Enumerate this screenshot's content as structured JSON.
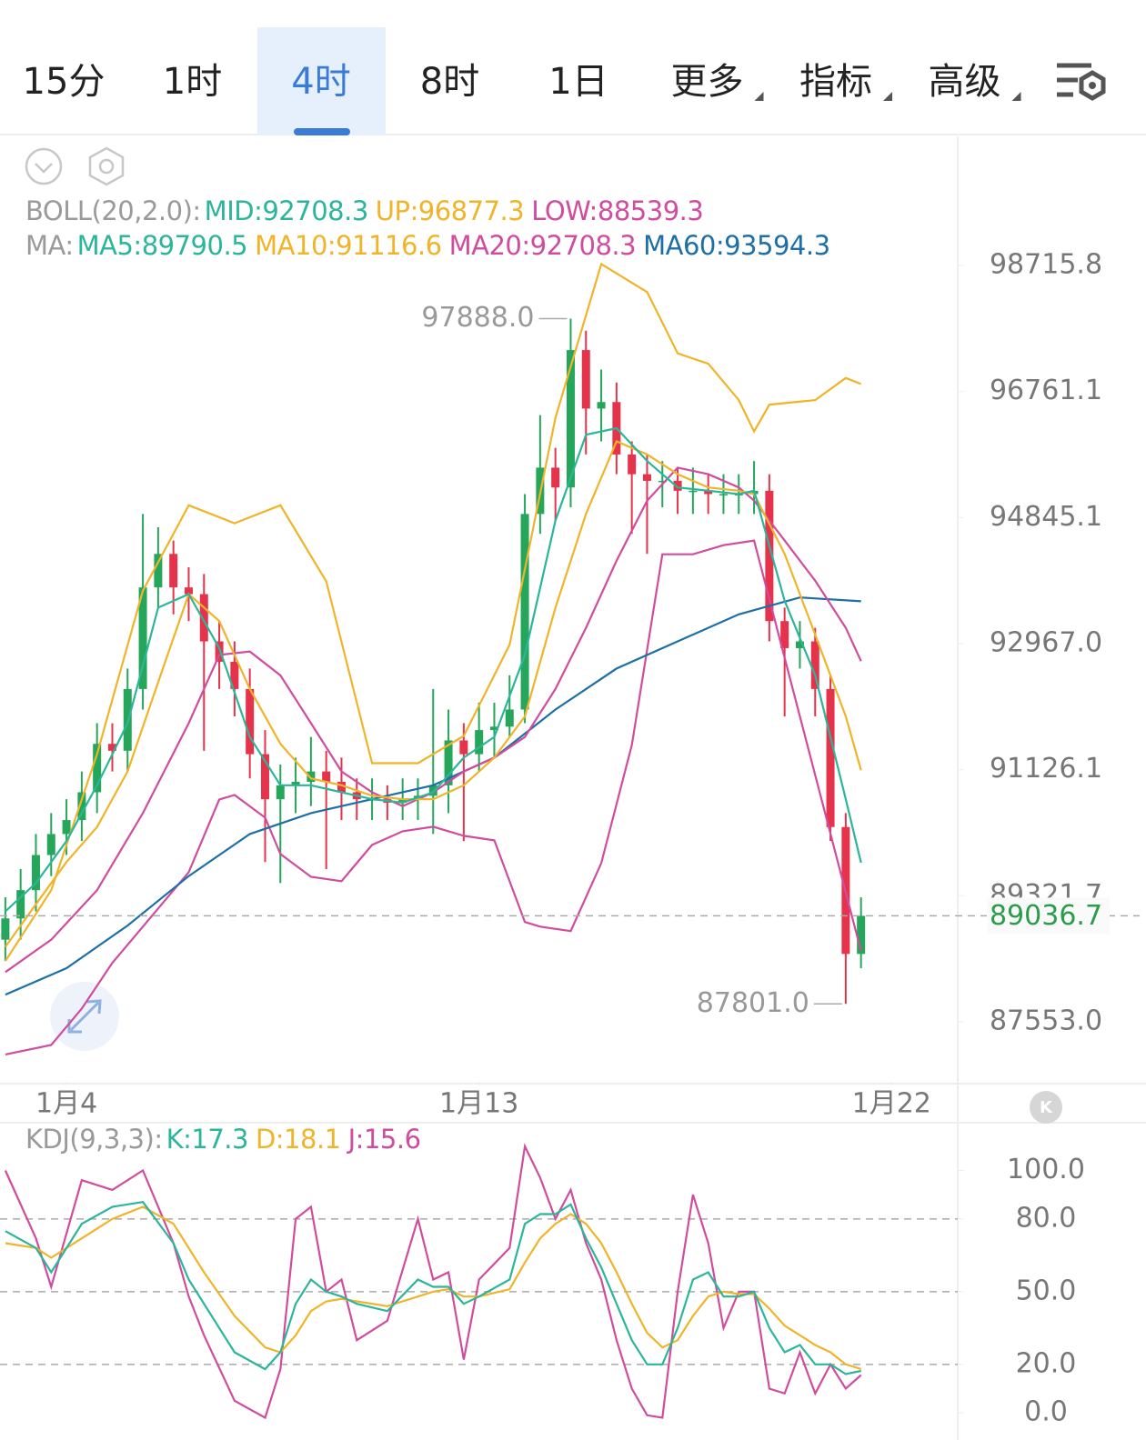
{
  "tabs": [
    {
      "label": "15分"
    },
    {
      "label": "1时"
    },
    {
      "label": "4时",
      "selected": true
    },
    {
      "label": "8时"
    },
    {
      "label": "1日"
    },
    {
      "label": "更多",
      "dropdown": true
    },
    {
      "label": "指标",
      "dropdown": true
    },
    {
      "label": "高级",
      "dropdown": true
    }
  ],
  "chart_data": [
    {
      "type": "candlestick",
      "log_y": true,
      "ylim": [
        86722,
        100760
      ],
      "xlim": [
        -0.35,
        62.33
      ],
      "up_color": "#26a65b",
      "down_color": "#e5334b",
      "open": [
        88700,
        89000,
        89400,
        89900,
        90200,
        90400,
        90800,
        91500,
        91400,
        92300,
        93800,
        94300,
        93800,
        93700,
        93000,
        92700,
        92300,
        91350,
        90700,
        90900,
        90950,
        91100,
        90950,
        90800,
        90700,
        90700,
        90650,
        90700,
        90750,
        90900,
        91550,
        91350,
        91700,
        91750,
        92000,
        94900,
        95600,
        95300,
        97400,
        96500,
        96600,
        95800,
        95500,
        95400,
        95400,
        95250,
        95250,
        95200,
        95200,
        95200,
        95250,
        93300,
        92900,
        93000,
        92300,
        90300,
        88500
      ],
      "high": [
        89300,
        89700,
        90200,
        90500,
        90700,
        91100,
        91800,
        91800,
        92600,
        94900,
        94700,
        94500,
        94100,
        94000,
        93300,
        93000,
        92600,
        91700,
        91200,
        91300,
        91600,
        91400,
        91300,
        91000,
        91000,
        90900,
        91000,
        91000,
        92300,
        92000,
        91800,
        92100,
        92100,
        92500,
        95200,
        96400,
        95900,
        97888,
        97700,
        97100,
        96900,
        96000,
        95800,
        95700,
        95600,
        95600,
        95500,
        95500,
        95500,
        95700,
        95500,
        93500,
        93300,
        93200,
        92500,
        90500,
        89300
      ],
      "low": [
        88400,
        88700,
        89100,
        89600,
        89900,
        90100,
        90500,
        91100,
        91100,
        92000,
        93500,
        93400,
        93300,
        91400,
        92300,
        91900,
        91000,
        89800,
        89500,
        90500,
        90600,
        89700,
        90400,
        90400,
        90400,
        90400,
        90400,
        90400,
        90200,
        90500,
        90100,
        91100,
        91300,
        91600,
        91800,
        94600,
        94800,
        95000,
        95800,
        96000,
        95500,
        94600,
        94300,
        95000,
        94900,
        94900,
        94900,
        94900,
        94900,
        94900,
        93000,
        91900,
        92600,
        91900,
        90100,
        87801,
        88300
      ],
      "close": [
        89000,
        89400,
        89900,
        90200,
        90400,
        90800,
        91500,
        91400,
        92300,
        93800,
        94300,
        93800,
        93700,
        93000,
        92700,
        92300,
        91350,
        90700,
        90900,
        90950,
        91100,
        90950,
        90800,
        90700,
        90700,
        90650,
        90700,
        90750,
        90900,
        91550,
        91350,
        91700,
        91750,
        92000,
        94900,
        95600,
        95300,
        97400,
        96500,
        96600,
        95800,
        95500,
        95400,
        95400,
        95250,
        95250,
        95200,
        95200,
        95200,
        95250,
        93300,
        92900,
        93000,
        92300,
        90300,
        88500,
        89036.7
      ],
      "series": [
        {
          "color": "#f0b429",
          "x": [
            0,
            3,
            6,
            9,
            12,
            15,
            18,
            21,
            24,
            27,
            30,
            33,
            36,
            39,
            42,
            44,
            46,
            48,
            49,
            50,
            53,
            55,
            56
          ],
          "values": [
            88400,
            89400,
            91350,
            93750,
            95030,
            94760,
            95030,
            93890,
            91220,
            91220,
            91615,
            92950,
            96360,
            98740,
            98300,
            97350,
            97190,
            96630,
            96150,
            96560,
            96630,
            96970,
            96877.3
          ]
        },
        {
          "color": "#d04c9e",
          "x": [
            0,
            3,
            5,
            7,
            9,
            12,
            14,
            15,
            17,
            18,
            20,
            22,
            24,
            26,
            28,
            30,
            32,
            34,
            35,
            37,
            39,
            41,
            43,
            45,
            47,
            49,
            56
          ],
          "values": [
            87100,
            87230,
            87735,
            88374,
            88884,
            89656,
            90696,
            90760,
            90435,
            89914,
            89590,
            89527,
            90045,
            90240,
            90305,
            90175,
            90110,
            88950,
            88884,
            88821,
            89785,
            91484,
            94295,
            94295,
            94431,
            94500,
            88539.3
          ]
        },
        {
          "color": "#1d6fa5",
          "x": [
            0,
            4,
            8,
            12,
            16,
            20,
            24,
            28,
            32,
            36,
            40,
            44,
            48,
            52,
            56
          ],
          "values": [
            87930,
            88300,
            88900,
            89600,
            90200,
            90500,
            90700,
            90900,
            91300,
            92000,
            92600,
            93000,
            93400,
            93650,
            93594.3
          ]
        },
        {
          "color": "#d04c9e",
          "x": [
            0,
            3,
            6,
            9,
            12,
            14,
            16,
            18,
            20,
            22,
            24,
            26,
            28,
            30,
            32,
            34,
            36,
            38,
            40,
            42,
            44,
            46,
            48,
            49,
            51,
            53,
            55,
            56
          ],
          "values": [
            88245,
            88700,
            89400,
            90500,
            91800,
            92800,
            92850,
            92500,
            91800,
            91100,
            90800,
            90600,
            90800,
            91100,
            91300,
            91600,
            92300,
            93200,
            94200,
            95100,
            95600,
            95500,
            95300,
            95100,
            94500,
            93900,
            93200,
            92708.3
          ]
        },
        {
          "color": "#f0b429",
          "x": [
            0,
            2,
            4,
            6,
            8,
            10,
            12,
            14,
            16,
            18,
            20,
            22,
            24,
            26,
            28,
            30,
            32,
            34,
            36,
            38,
            40,
            42,
            44,
            46,
            48,
            49,
            51,
            53,
            55,
            56
          ],
          "values": [
            88600,
            89200,
            89800,
            90300,
            91100,
            92400,
            93700,
            93300,
            92300,
            91500,
            91000,
            90900,
            90750,
            90700,
            90700,
            90900,
            91300,
            91900,
            93500,
            94900,
            96000,
            95800,
            95500,
            95300,
            95250,
            95200,
            94300,
            93100,
            91900,
            91116.6
          ]
        },
        {
          "color": "#2bb59a",
          "x": [
            0,
            2,
            4,
            6,
            8,
            10,
            12,
            14,
            16,
            18,
            20,
            22,
            24,
            26,
            28,
            30,
            32,
            34,
            36,
            38,
            40,
            42,
            44,
            46,
            48,
            49,
            51,
            53,
            55,
            56
          ],
          "values": [
            89100,
            89500,
            90100,
            90900,
            91800,
            93500,
            93700,
            92900,
            91600,
            90900,
            90900,
            90800,
            90700,
            90650,
            90800,
            91300,
            91600,
            92800,
            94800,
            96100,
            96200,
            95700,
            95300,
            95250,
            95200,
            95250,
            93600,
            92500,
            90700,
            89790.5
          ]
        }
      ],
      "yticks": [
        98715.8,
        96761.1,
        94845.1,
        {
          "value": 92967,
          "label": "92967.0"
        },
        91126.1,
        89321.7,
        {
          "value": 87553,
          "label": "87553.0"
        }
      ],
      "xticks": [
        {
          "value": 4,
          "label": "1月4"
        },
        {
          "value": 31,
          "label": "1月13"
        },
        {
          "value": 58,
          "label": "1月22"
        }
      ],
      "annotations": [
        {
          "label": "97888.0",
          "value": 97888,
          "x": 37
        },
        {
          "label": "87801.0",
          "value": 87801,
          "x": 55
        }
      ],
      "last_price": 89036.7,
      "last_price_color": "#2a9d4a",
      "legends": [
        {
          "label": "BOLL(20,2.0):",
          "items": [
            {
              "text": "MID:92708.3",
              "color": "#2bb59a"
            },
            {
              "text": "UP:96877.3",
              "color": "#f0b429"
            },
            {
              "text": "LOW:88539.3",
              "color": "#d04c9e"
            }
          ]
        },
        {
          "label": "MA:",
          "items": [
            {
              "text": "MA5:89790.5",
              "color": "#2bb59a"
            },
            {
              "text": "MA10:91116.6",
              "color": "#f0b429"
            },
            {
              "text": "MA20:92708.3",
              "color": "#d04c9e"
            },
            {
              "text": "MA60:93594.3",
              "color": "#1d6fa5"
            }
          ]
        }
      ]
    },
    {
      "type": "line",
      "xlim": [
        -0.35,
        62.33
      ],
      "ylim": [
        -11.2,
        119.7
      ],
      "legend": {
        "label": "KDJ(9,3,3):",
        "items": [
          {
            "text": "K:17.3",
            "color": "#2bb59a"
          },
          {
            "text": "D:18.1",
            "color": "#f0b429"
          },
          {
            "text": "J:15.6",
            "color": "#d04c9e"
          }
        ]
      },
      "x": [
        0,
        2,
        3,
        5,
        7,
        9,
        11,
        12,
        13,
        15,
        17,
        18,
        19,
        20,
        21,
        22,
        23,
        25,
        27,
        28,
        29,
        30,
        31,
        33,
        34,
        35,
        36,
        37,
        38,
        39,
        40,
        41,
        42,
        43,
        44,
        45,
        46,
        47,
        48,
        49,
        50,
        51,
        52,
        53,
        54,
        55,
        56
      ],
      "series": [
        {
          "color": "#d04c9e",
          "values": [
            100,
            72,
            52,
            96,
            92,
            100,
            70,
            48,
            32,
            5,
            -2,
            18,
            80,
            85,
            50,
            55,
            30,
            38,
            80,
            55,
            58,
            22,
            55,
            68,
            110,
            97,
            80,
            92,
            70,
            55,
            30,
            10,
            -1,
            -2,
            50,
            90,
            70,
            35,
            50,
            50,
            10,
            8,
            25,
            8,
            20,
            10,
            15.6
          ]
        },
        {
          "color": "#f0b429",
          "values": [
            70,
            68,
            64,
            72,
            80,
            85,
            78,
            68,
            58,
            40,
            27,
            25,
            32,
            42,
            46,
            47,
            46,
            44,
            48,
            50,
            51,
            48,
            48,
            51,
            62,
            72,
            78,
            82,
            78,
            70,
            58,
            45,
            33,
            27,
            30,
            40,
            48,
            50,
            49,
            49,
            43,
            36,
            32,
            28,
            25,
            20,
            18.1
          ]
        },
        {
          "color": "#2bb59a",
          "values": [
            75,
            68,
            58,
            78,
            85,
            87,
            70,
            55,
            45,
            25,
            18,
            25,
            45,
            55,
            50,
            48,
            45,
            42,
            55,
            52,
            52,
            45,
            48,
            55,
            78,
            82,
            82,
            86,
            72,
            60,
            45,
            30,
            20,
            20,
            35,
            55,
            58,
            48,
            48,
            50,
            35,
            25,
            28,
            20,
            20,
            16,
            17.3
          ]
        }
      ],
      "yticks": [
        {
          "value": 100,
          "label": "100.0"
        },
        {
          "value": 80,
          "label": "80.0"
        },
        {
          "value": 50,
          "label": "50.0"
        },
        {
          "value": 20,
          "label": "20.0"
        },
        {
          "value": 0,
          "label": "0.0"
        }
      ],
      "dashed_lines": [
        80,
        50,
        20
      ]
    }
  ]
}
